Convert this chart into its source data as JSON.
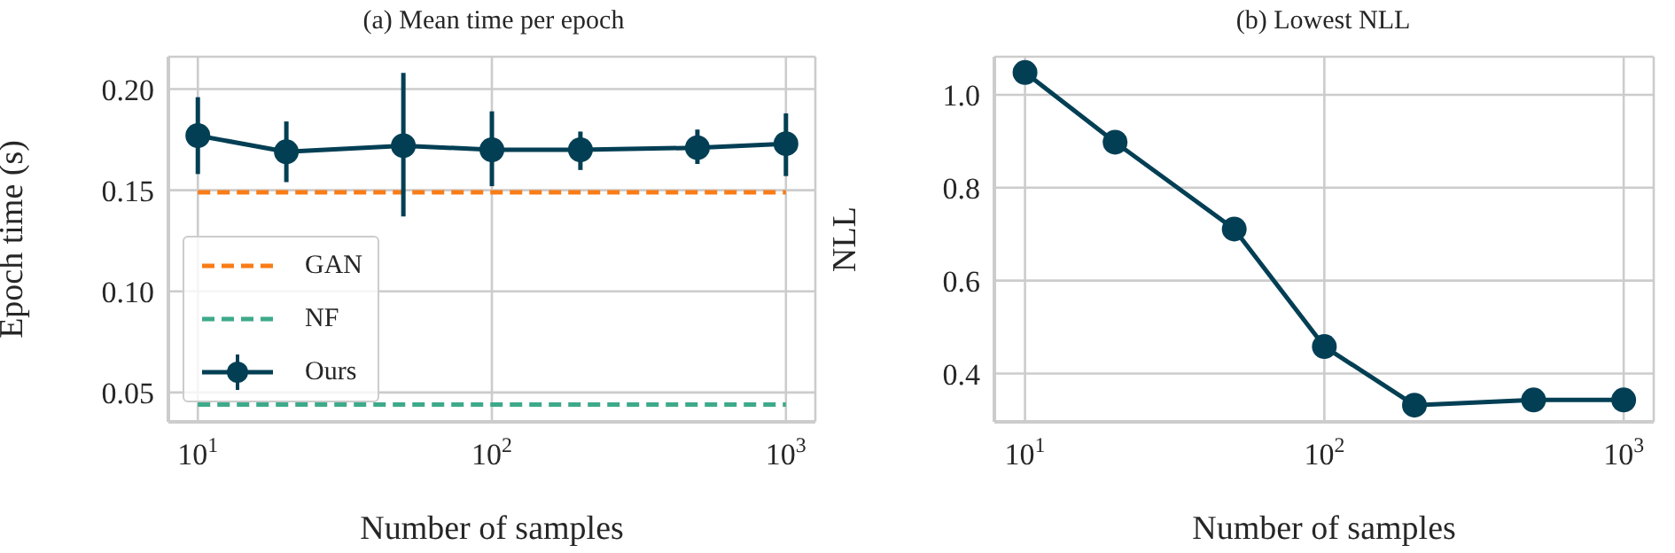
{
  "chart_data": [
    {
      "type": "line",
      "title": "(a) Mean time per epoch",
      "xlabel": "Number of samples",
      "ylabel": "Epoch time (s)",
      "log": "x",
      "grid": true,
      "legend": "bottom left",
      "xlim": [
        7.94,
        1259
      ],
      "xticks": [
        {
          "value": 10,
          "label": "10$^{1}$"
        },
        {
          "value": 100,
          "label": "10$^{2}$"
        },
        {
          "value": 1000,
          "label": "10$^{3}$"
        }
      ],
      "ylim": [
        0.0355,
        0.216
      ],
      "yticks": [
        0.05,
        {
          "value": 0.1,
          "label": "0.10"
        },
        0.15,
        {
          "value": 0.2,
          "label": "0.20"
        }
      ],
      "series": [
        {
          "name": "GAN",
          "color": "#f97c16",
          "x": [
            10,
            1000
          ],
          "values": [
            0.149,
            0.149
          ],
          "line_style": "dashed",
          "marker": "none"
        },
        {
          "name": "NF",
          "color": "#3daa8a",
          "x": [
            10,
            1000
          ],
          "values": [
            0.044,
            0.044
          ],
          "line_style": "dashed",
          "marker": "none"
        },
        {
          "name": "Ours",
          "color": "#033f54",
          "x": [
            10,
            20,
            50,
            100,
            200,
            500,
            1000
          ],
          "values": [
            0.177,
            0.169,
            0.172,
            0.17,
            0.17,
            0.171,
            0.173
          ],
          "errors": [
            [
              0.158,
              0.196
            ],
            [
              0.154,
              0.184
            ],
            [
              0.137,
              0.208
            ],
            [
              0.152,
              0.189
            ],
            [
              0.16,
              0.179
            ],
            [
              0.163,
              0.18
            ],
            [
              0.157,
              0.188
            ]
          ],
          "line_style": "solid",
          "marker": "circle"
        }
      ]
    },
    {
      "type": "line",
      "title": "(b) Lowest NLL",
      "xlabel": "Number of samples",
      "ylabel": "NLL",
      "log": "x",
      "grid": true,
      "marker": "circle",
      "xlim": [
        7.9,
        1260
      ],
      "xticks": [
        {
          "value": 10,
          "label": "10$^{1}$"
        },
        {
          "value": 100,
          "label": "10$^{2}$"
        },
        {
          "value": 1000,
          "label": "10$^{3}$"
        }
      ],
      "ylim": [
        0.296,
        1.082
      ],
      "yticks": [
        0.4,
        0.6,
        0.8,
        {
          "value": 1,
          "label": "1.0"
        }
      ],
      "series": [
        {
          "color": "#033f54",
          "x": [
            10,
            20,
            50,
            100,
            200,
            500,
            1000
          ],
          "values": [
            1.048,
            0.898,
            0.711,
            0.458,
            0.332,
            0.343,
            0.343
          ]
        }
      ]
    }
  ]
}
